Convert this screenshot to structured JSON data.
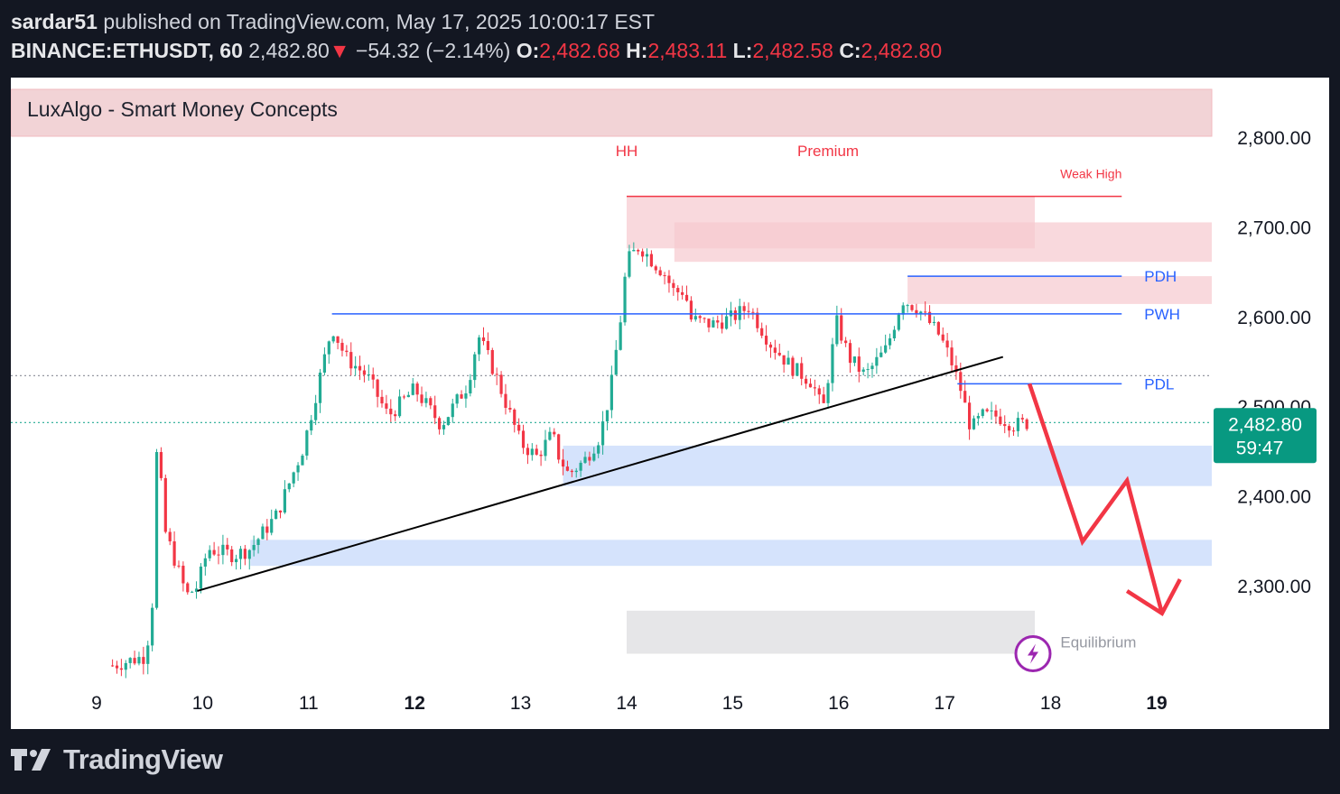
{
  "header": {
    "author": "sardar51",
    "published_text": "published on TradingView.com, May 17, 2025 10:00:17 EST",
    "symbol": "BINANCE:ETHUSDT, 60",
    "last_price": "2,482.80",
    "change_arrow": "▼",
    "change": "−54.32 (−2.14%)",
    "o_label": "O:",
    "o_value": "2,482.68",
    "h_label": "H:",
    "h_value": "2,483.11",
    "l_label": "L:",
    "l_value": "2,482.58",
    "c_label": "C:",
    "c_value": "2,482.80"
  },
  "indicator": {
    "name": "LuxAlgo - Smart Money Concepts"
  },
  "price_badge": {
    "price": "2,482.80",
    "countdown": "59:47"
  },
  "footer": {
    "brand": "TradingView",
    "logo": "tradingview-logo-icon"
  },
  "colors": {
    "up": "#22ab94",
    "down": "#f23645",
    "level": "#2962ff",
    "supply": "#f7c9ce",
    "demand": "#c7d9fb",
    "equilibrium": "#e6e6e8",
    "arrow": "#f23645"
  },
  "chart_data": {
    "type": "candlestick",
    "ylim": [
      2205,
      2840
    ],
    "y_ticks": [
      "2,800.00",
      "2,700.00",
      "2,600.00",
      "2,500.00",
      "2,400.00",
      "2,300.00"
    ],
    "y_tick_values": [
      2800,
      2700,
      2600,
      2500,
      2400,
      2300
    ],
    "x_ticks": [
      {
        "label": "9",
        "x": 9.0,
        "bold": false
      },
      {
        "label": "10",
        "x": 10.0,
        "bold": false
      },
      {
        "label": "11",
        "x": 11.0,
        "bold": false
      },
      {
        "label": "12",
        "x": 12.0,
        "bold": true
      },
      {
        "label": "13",
        "x": 13.0,
        "bold": false
      },
      {
        "label": "14",
        "x": 14.0,
        "bold": false
      },
      {
        "label": "15",
        "x": 15.0,
        "bold": false
      },
      {
        "label": "16",
        "x": 16.0,
        "bold": false
      },
      {
        "label": "17",
        "x": 17.0,
        "bold": false
      },
      {
        "label": "18",
        "x": 18.0,
        "bold": false
      },
      {
        "label": "19",
        "x": 19.0,
        "bold": true
      }
    ],
    "xlim": [
      8.2,
      19.55
    ],
    "close_path": [
      [
        9.15,
        2212
      ],
      [
        9.45,
        2222
      ],
      [
        9.52,
        2262
      ],
      [
        9.57,
        2460
      ],
      [
        9.65,
        2360
      ],
      [
        9.85,
        2290
      ],
      [
        9.95,
        2300
      ],
      [
        10.05,
        2342
      ],
      [
        10.3,
        2335
      ],
      [
        10.45,
        2342
      ],
      [
        10.7,
        2380
      ],
      [
        10.95,
        2455
      ],
      [
        11.12,
        2540
      ],
      [
        11.22,
        2590
      ],
      [
        11.35,
        2555
      ],
      [
        11.55,
        2535
      ],
      [
        11.75,
        2490
      ],
      [
        12.0,
        2520
      ],
      [
        12.25,
        2480
      ],
      [
        12.5,
        2525
      ],
      [
        12.6,
        2580
      ],
      [
        12.75,
        2540
      ],
      [
        13.0,
        2460
      ],
      [
        13.15,
        2445
      ],
      [
        13.3,
        2470
      ],
      [
        13.35,
        2448
      ],
      [
        13.45,
        2425
      ],
      [
        13.6,
        2440
      ],
      [
        13.75,
        2468
      ],
      [
        13.85,
        2520
      ],
      [
        13.95,
        2605
      ],
      [
        14.0,
        2662
      ],
      [
        14.12,
        2680
      ],
      [
        14.25,
        2662
      ],
      [
        14.35,
        2650
      ],
      [
        14.45,
        2628
      ],
      [
        14.55,
        2630
      ],
      [
        14.6,
        2598
      ],
      [
        14.8,
        2592
      ],
      [
        15.0,
        2600
      ],
      [
        15.15,
        2612
      ],
      [
        15.35,
        2572
      ],
      [
        15.55,
        2545
      ],
      [
        15.75,
        2528
      ],
      [
        15.85,
        2495
      ],
      [
        15.98,
        2595
      ],
      [
        16.1,
        2555
      ],
      [
        16.25,
        2535
      ],
      [
        16.45,
        2565
      ],
      [
        16.6,
        2620
      ],
      [
        16.75,
        2610
      ],
      [
        16.95,
        2580
      ],
      [
        17.05,
        2555
      ],
      [
        17.15,
        2520
      ],
      [
        17.25,
        2475
      ],
      [
        17.35,
        2490
      ],
      [
        17.5,
        2490
      ],
      [
        17.65,
        2480
      ],
      [
        17.8,
        2482.8
      ]
    ],
    "levels": [
      {
        "label": "PDH",
        "value": 2646,
        "x_start": 16.65,
        "x_end": 18.67
      },
      {
        "label": "PWH",
        "value": 2604,
        "x_start": 11.22,
        "x_end": 18.67
      },
      {
        "label": "PDL",
        "value": 2526,
        "x_start": 17.12,
        "x_end": 18.67
      }
    ],
    "weak_high": {
      "label": "Weak High",
      "value": 2735,
      "x_start": 14.0,
      "x_end": 18.67
    },
    "annotations": [
      {
        "label": "HH",
        "x": 14.0,
        "y": 2780
      },
      {
        "label": "Premium",
        "x": 15.9,
        "y": 2780
      },
      {
        "label": "Equilibrium",
        "x": 18.45,
        "y": 2232
      }
    ],
    "zones": [
      {
        "kind": "supply",
        "x_start": 14.0,
        "x_end": 17.85,
        "y_low": 2677,
        "y_high": 2735
      },
      {
        "kind": "supply",
        "x_start": 14.45,
        "x_end": 19.55,
        "y_low": 2662,
        "y_high": 2706
      },
      {
        "kind": "supply",
        "x_start": 16.65,
        "x_end": 19.55,
        "y_low": 2615,
        "y_high": 2646
      },
      {
        "kind": "demand",
        "x_start": 13.4,
        "x_end": 19.55,
        "y_low": 2412,
        "y_high": 2457
      },
      {
        "kind": "demand",
        "x_start": 10.45,
        "x_end": 19.55,
        "y_low": 2323,
        "y_high": 2352
      },
      {
        "kind": "equilibrium",
        "x_start": 14.0,
        "x_end": 17.85,
        "y_low": 2225,
        "y_high": 2273
      }
    ],
    "trendline": {
      "x1": 9.95,
      "y1": 2295,
      "x2": 17.55,
      "y2": 2556
    },
    "dotted_lines": [
      2535,
      2482.8
    ],
    "projection": [
      [
        17.8,
        2526
      ],
      [
        18.3,
        2350
      ],
      [
        18.72,
        2418
      ],
      [
        19.05,
        2270
      ]
    ],
    "projection_head_left": [
      18.72,
      2295
    ],
    "projection_head_right": [
      19.22,
      2308
    ]
  }
}
